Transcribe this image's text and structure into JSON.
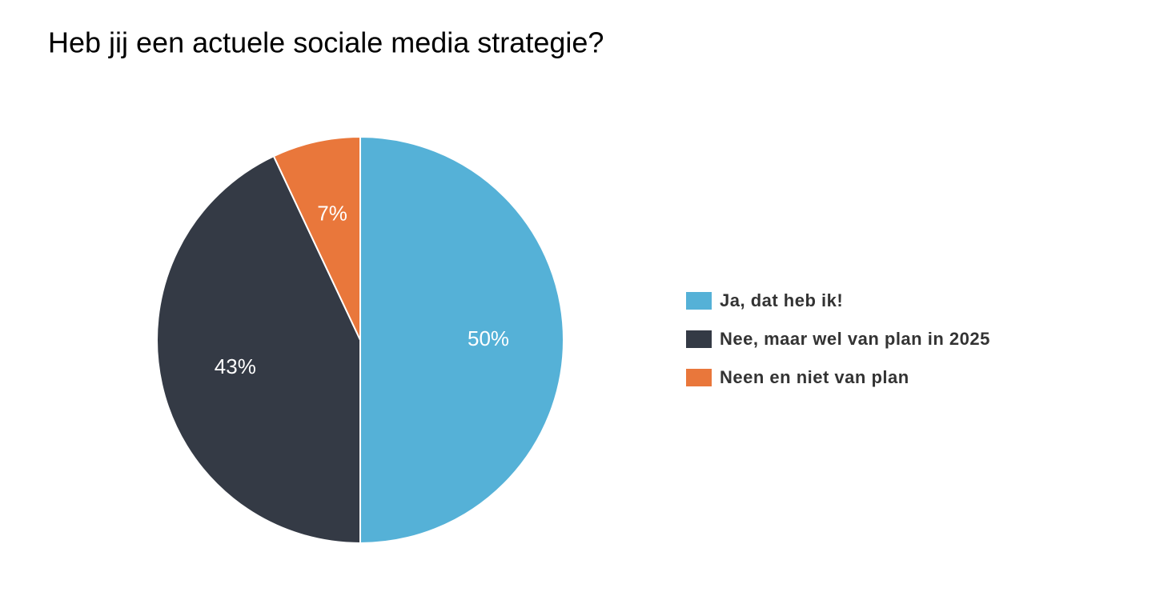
{
  "chart_data": {
    "type": "pie",
    "title": "Heb jij een actuele sociale media strategie?",
    "categories": [
      "Ja, dat heb ik!",
      "Nee, maar wel van plan in 2025",
      "Neen en niet van plan"
    ],
    "values": [
      50,
      43,
      7
    ],
    "value_labels": [
      "50%",
      "43%",
      "7%"
    ],
    "colors": [
      "#55b1d7",
      "#343a45",
      "#e9773b"
    ],
    "legend": "right"
  }
}
